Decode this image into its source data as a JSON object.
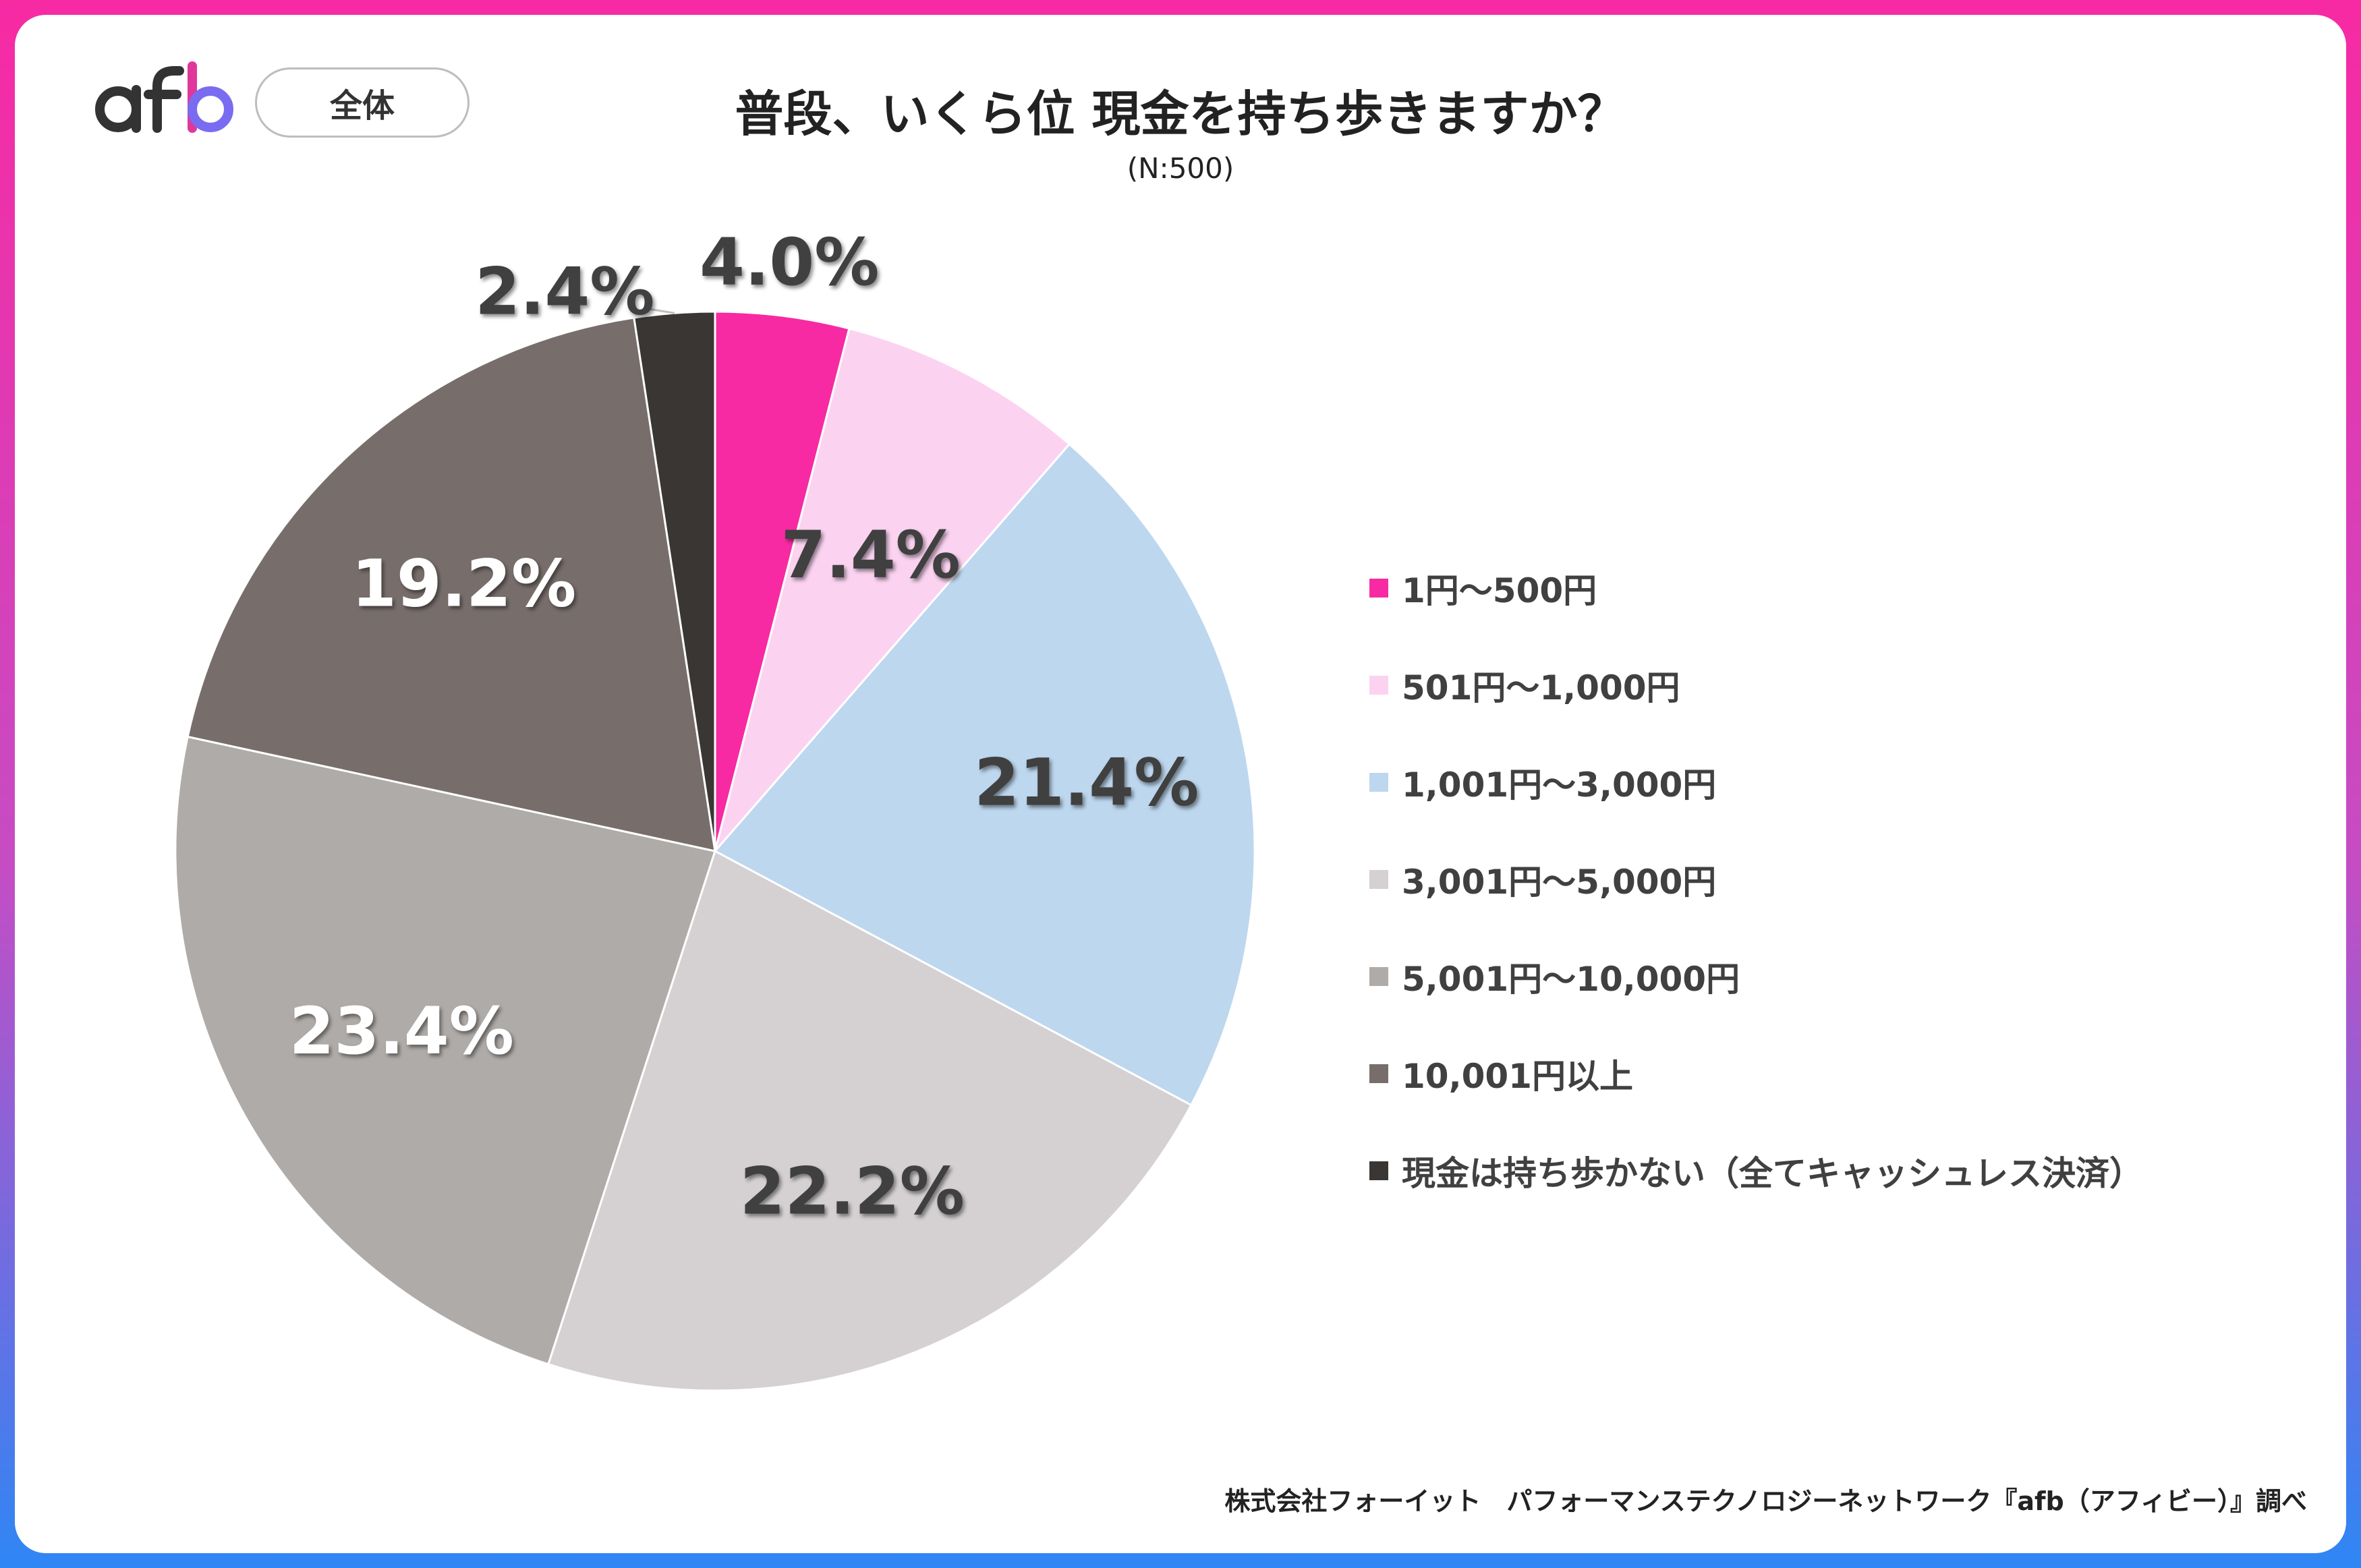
{
  "brand": {
    "logo_text": "afb"
  },
  "header": {
    "tag": "全体",
    "title": "普段、いくら位 現金を持ち歩きますか？",
    "subtitle": "(N:500)"
  },
  "chart_data": {
    "type": "pie",
    "title": "普段、いくら位 現金を持ち歩きますか？",
    "subtitle": "(N:500)",
    "categories": [
      "1円～500円",
      "501円～1,000円",
      "1,001円～3,000円",
      "3,001円～5,000円",
      "5,001円～10,000円",
      "10,001円以上",
      "現金は持ち歩かない（全てキャッシュレス決済）"
    ],
    "values": [
      4.0,
      7.4,
      21.4,
      22.2,
      23.4,
      19.2,
      2.4
    ],
    "labels": [
      "4.0%",
      "7.4%",
      "21.4%",
      "22.2%",
      "23.4%",
      "19.2%",
      "2.4%"
    ],
    "colors": [
      "#f72aa3",
      "#fbd3f1",
      "#bdd7ee",
      "#d5d1d2",
      "#afaba8",
      "#776e6b",
      "#3a3634"
    ],
    "label_colors": [
      "#404040",
      "#404040",
      "#404040",
      "#404040",
      "#ffffff",
      "#ffffff",
      "#404040"
    ],
    "legend_position": "right"
  },
  "footer": {
    "source": "株式会社フォーイット　パフォーマンステクノロジーネットワーク『afb（アフィビー）』調べ"
  }
}
